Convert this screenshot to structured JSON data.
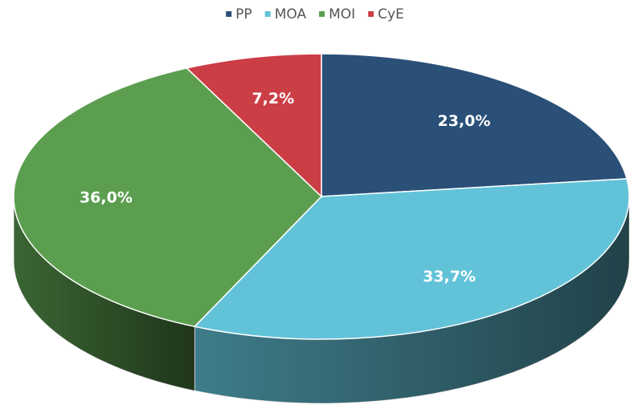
{
  "chart_data": {
    "type": "pie",
    "three_d": true,
    "categories": [
      "PP",
      "MOA",
      "MOI",
      "CyE"
    ],
    "values": [
      23.0,
      33.7,
      36.0,
      7.2
    ],
    "value_labels": [
      "23,0%",
      "33,7%",
      "36,0%",
      "7,2%"
    ],
    "colors": [
      "#2a5078",
      "#62c3d8",
      "#5c9e50",
      "#cc3e45"
    ],
    "legend": "top"
  }
}
